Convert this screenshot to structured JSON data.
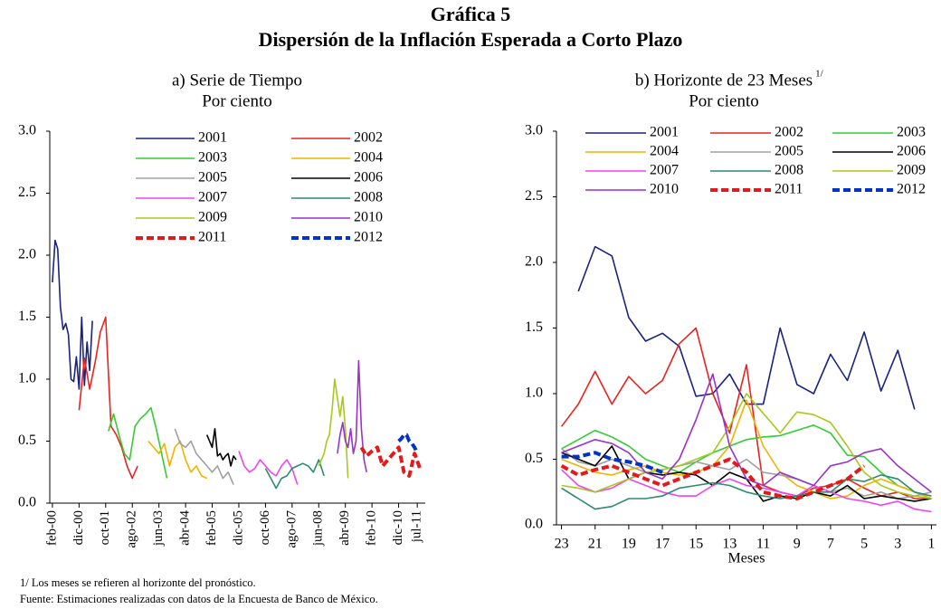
{
  "title": "Gráfica 5",
  "subtitle": "Dispersión de la Inflación Esperada a Corto Plazo",
  "footnotes": [
    "1/ Los meses se refieren al horizonte del pronóstico.",
    "Fuente: Estimaciones realizadas con datos de la Encuesta de Banco de México."
  ],
  "chart_data": [
    {
      "type": "line",
      "title": "a) Serie de Tiempo",
      "subtitle": "Por ciento",
      "xlim": [
        -1,
        140
      ],
      "xticks": [
        {
          "value": 0,
          "label": "feb-00"
        },
        {
          "value": 10,
          "label": "dic-00"
        },
        {
          "value": 20,
          "label": "oct-01"
        },
        {
          "value": 30,
          "label": "ago-02"
        },
        {
          "value": 40,
          "label": "jun-03"
        },
        {
          "value": 50,
          "label": "abr-04"
        },
        {
          "value": 60,
          "label": "feb-05"
        },
        {
          "value": 70,
          "label": "dic-05"
        },
        {
          "value": 80,
          "label": "oct-06"
        },
        {
          "value": 90,
          "label": "ago-07"
        },
        {
          "value": 100,
          "label": "jun-08"
        },
        {
          "value": 110,
          "label": "abr-09"
        },
        {
          "value": 120,
          "label": "feb-10"
        },
        {
          "value": 130,
          "label": "dic-10"
        },
        {
          "value": 137,
          "label": "jul-11"
        }
      ],
      "ylim": [
        0,
        3
      ],
      "yticks": [
        {
          "value": 0,
          "label": "0.0"
        },
        0.5,
        {
          "value": 1,
          "label": "1.0"
        },
        1.5,
        {
          "value": 2,
          "label": "2.0"
        },
        2.5,
        {
          "value": 3,
          "label": "3.0"
        }
      ],
      "series": [
        {
          "name": "2001",
          "color": "#1a237e",
          "x": [
            0,
            1,
            2,
            3,
            4,
            5,
            6,
            7,
            8,
            9,
            10,
            11,
            12,
            13,
            14,
            15
          ],
          "values": [
            1.78,
            2.12,
            2.05,
            1.58,
            1.4,
            1.45,
            1.36,
            1.0,
            0.98,
            1.18,
            0.92,
            1.5,
            0.95,
            1.3,
            1.07,
            1.47
          ]
        },
        {
          "name": "2002",
          "color": "#e8231e",
          "x": [
            10,
            12,
            14,
            16,
            18,
            20,
            22,
            24,
            26,
            28,
            30,
            32
          ],
          "values": [
            0.75,
            1.17,
            0.92,
            1.13,
            1.38,
            1.5,
            0.62,
            0.55,
            0.45,
            0.3,
            0.2,
            0.3
          ]
        },
        {
          "name": "2003",
          "color": "#33cc33",
          "x": [
            21,
            23,
            25,
            27,
            29,
            31,
            33,
            35,
            37,
            39,
            41,
            43
          ],
          "values": [
            0.58,
            0.72,
            0.55,
            0.4,
            0.35,
            0.62,
            0.68,
            0.72,
            0.77,
            0.6,
            0.4,
            0.2
          ]
        },
        {
          "name": "2004",
          "color": "#f0b400",
          "x": [
            36,
            38,
            40,
            42,
            44,
            46,
            48,
            50,
            52,
            54,
            56,
            58
          ],
          "values": [
            0.5,
            0.45,
            0.4,
            0.48,
            0.3,
            0.45,
            0.5,
            0.35,
            0.25,
            0.3,
            0.22,
            0.2
          ]
        },
        {
          "name": "2005",
          "color": "#a0a0a0",
          "x": [
            46,
            48,
            50,
            52,
            54,
            56,
            58,
            60,
            62,
            64,
            66,
            68
          ],
          "values": [
            0.6,
            0.48,
            0.45,
            0.5,
            0.4,
            0.35,
            0.3,
            0.25,
            0.3,
            0.2,
            0.25,
            0.15
          ]
        },
        {
          "name": "2006",
          "color": "#000000",
          "x": [
            58,
            59,
            60,
            61,
            62,
            63,
            64,
            65,
            66,
            67,
            68,
            69
          ],
          "values": [
            0.55,
            0.5,
            0.45,
            0.6,
            0.38,
            0.4,
            0.35,
            0.38,
            0.4,
            0.3,
            0.38,
            0.35
          ]
        },
        {
          "name": "2007",
          "color": "#ee44ee",
          "x": [
            70,
            72,
            74,
            76,
            78,
            80,
            82,
            84,
            86,
            88,
            90,
            92
          ],
          "values": [
            0.42,
            0.3,
            0.25,
            0.28,
            0.35,
            0.3,
            0.25,
            0.22,
            0.3,
            0.35,
            0.28,
            0.15
          ]
        },
        {
          "name": "2008",
          "color": "#2e8b6e",
          "x": [
            80,
            82,
            84,
            86,
            88,
            90,
            92,
            94,
            96,
            98,
            100,
            102
          ],
          "values": [
            0.28,
            0.2,
            0.12,
            0.2,
            0.22,
            0.28,
            0.3,
            0.32,
            0.3,
            0.25,
            0.35,
            0.22
          ]
        },
        {
          "name": "2009",
          "color": "#a8c820",
          "x": [
            100,
            101,
            102,
            103,
            104,
            105,
            106,
            107,
            108,
            109,
            110,
            111
          ],
          "values": [
            0.3,
            0.35,
            0.4,
            0.5,
            0.55,
            0.75,
            1.0,
            0.85,
            0.7,
            0.86,
            0.6,
            0.2
          ]
        },
        {
          "name": "2010",
          "color": "#9932cc",
          "x": [
            107,
            108,
            109,
            110,
            111,
            112,
            113,
            114,
            115,
            116,
            117,
            118
          ],
          "values": [
            0.4,
            0.55,
            0.65,
            0.5,
            0.45,
            0.6,
            0.4,
            0.5,
            1.15,
            0.6,
            0.35,
            0.25
          ]
        },
        {
          "name": "2011",
          "color": "#e31a1c",
          "dashed": true,
          "x": [
            116,
            118,
            120,
            122,
            124,
            126,
            128,
            130,
            132,
            134,
            136,
            138
          ],
          "values": [
            0.45,
            0.38,
            0.42,
            0.45,
            0.3,
            0.35,
            0.4,
            0.45,
            0.25,
            0.22,
            0.4,
            0.28
          ]
        },
        {
          "name": "2012",
          "color": "#0033cc",
          "dashed": true,
          "x": [
            130,
            131,
            132,
            133,
            134,
            135,
            136,
            137
          ],
          "values": [
            0.5,
            0.52,
            0.55,
            0.55,
            0.5,
            0.48,
            0.45,
            0.4
          ]
        }
      ]
    },
    {
      "type": "line",
      "title": "b) Horizonte de 23 Meses",
      "title_note": "1/",
      "subtitle": "Por ciento",
      "xlabel": "Meses",
      "x": [
        23,
        22,
        21,
        20,
        19,
        18,
        17,
        16,
        15,
        14,
        13,
        12,
        11,
        10,
        9,
        8,
        7,
        6,
        5,
        4,
        3,
        2,
        1
      ],
      "xlim": [
        23.3,
        0.7
      ],
      "xticks": [
        23,
        21,
        19,
        17,
        15,
        13,
        11,
        9,
        7,
        5,
        3,
        1
      ],
      "ylim": [
        0,
        3
      ],
      "yticks": [
        {
          "value": 0,
          "label": "0.0"
        },
        0.5,
        {
          "value": 1,
          "label": "1.0"
        },
        1.5,
        {
          "value": 2,
          "label": "2.0"
        },
        2.5,
        {
          "value": 3,
          "label": "3.0"
        }
      ],
      "series": [
        {
          "name": "2001",
          "color": "#1a237e",
          "values": [
            null,
            1.78,
            2.12,
            2.05,
            1.58,
            1.4,
            1.46,
            1.36,
            0.98,
            1.0,
            1.15,
            0.92,
            0.92,
            1.5,
            1.07,
            1.0,
            1.3,
            1.1,
            1.47,
            1.02,
            1.33,
            0.88,
            null
          ]
        },
        {
          "name": "2002",
          "color": "#e8231e",
          "values": [
            0.75,
            0.92,
            1.17,
            0.92,
            1.13,
            1.0,
            1.1,
            1.38,
            1.5,
            1.0,
            0.7,
            1.22,
            0.3,
            0.25,
            0.22,
            0.28,
            0.3,
            0.35,
            0.28,
            0.22,
            0.25,
            0.2,
            0.2
          ]
        },
        {
          "name": "2003",
          "color": "#33cc33",
          "values": [
            0.58,
            0.65,
            0.72,
            0.67,
            0.6,
            0.5,
            0.45,
            0.4,
            0.48,
            0.55,
            0.6,
            0.65,
            0.67,
            0.68,
            0.72,
            0.76,
            0.7,
            0.53,
            0.52,
            0.4,
            0.3,
            0.25,
            0.2
          ]
        },
        {
          "name": "2004",
          "color": "#f0b400",
          "values": [
            0.5,
            0.45,
            0.4,
            0.38,
            0.42,
            0.45,
            0.4,
            0.38,
            0.4,
            0.45,
            0.6,
            0.95,
            0.6,
            0.4,
            0.3,
            0.25,
            0.2,
            0.22,
            0.3,
            0.35,
            0.3,
            0.25,
            0.2
          ]
        },
        {
          "name": "2005",
          "color": "#a0a0a0",
          "values": [
            0.58,
            0.48,
            0.45,
            0.5,
            0.45,
            0.4,
            0.42,
            0.45,
            0.48,
            0.45,
            0.42,
            0.5,
            0.4,
            0.38,
            0.35,
            0.3,
            0.25,
            0.28,
            0.22,
            0.25,
            0.2,
            0.22,
            0.25
          ]
        },
        {
          "name": "2006",
          "color": "#000000",
          "values": [
            0.55,
            0.5,
            0.45,
            0.6,
            0.35,
            0.4,
            0.38,
            0.4,
            0.38,
            0.3,
            0.4,
            0.35,
            0.18,
            0.22,
            0.2,
            0.25,
            0.22,
            0.3,
            0.2,
            0.22,
            0.2,
            0.18,
            0.2
          ]
        },
        {
          "name": "2007",
          "color": "#ee44ee",
          "values": [
            0.42,
            0.3,
            0.25,
            0.28,
            0.35,
            0.3,
            0.25,
            0.22,
            0.22,
            0.3,
            0.35,
            0.3,
            0.28,
            0.25,
            0.22,
            0.3,
            0.25,
            0.2,
            0.18,
            0.15,
            0.18,
            0.12,
            0.1
          ]
        },
        {
          "name": "2008",
          "color": "#2e8b6e",
          "values": [
            0.28,
            0.2,
            0.12,
            0.14,
            0.2,
            0.2,
            0.22,
            0.28,
            0.3,
            0.32,
            0.3,
            0.25,
            0.22,
            0.2,
            0.22,
            0.25,
            0.25,
            0.35,
            0.33,
            0.38,
            0.35,
            0.25,
            0.22
          ]
        },
        {
          "name": "2009",
          "color": "#a8c820",
          "values": [
            0.3,
            0.28,
            0.25,
            0.3,
            0.35,
            0.4,
            0.42,
            0.45,
            0.5,
            0.55,
            0.75,
            1.0,
            0.85,
            0.7,
            0.86,
            0.84,
            0.78,
            0.6,
            0.4,
            0.3,
            0.25,
            0.22,
            0.2
          ]
        },
        {
          "name": "2010",
          "color": "#9932cc",
          "values": [
            0.55,
            0.6,
            0.65,
            0.62,
            0.55,
            0.4,
            0.35,
            0.5,
            0.8,
            1.15,
            0.6,
            0.35,
            0.3,
            0.4,
            0.35,
            0.3,
            0.45,
            0.48,
            0.55,
            0.58,
            0.45,
            0.35,
            0.25
          ]
        },
        {
          "name": "2011",
          "color": "#e31a1c",
          "dashed": true,
          "values": [
            0.45,
            0.38,
            0.42,
            0.45,
            0.4,
            0.35,
            0.3,
            0.35,
            0.4,
            0.45,
            0.5,
            0.4,
            0.25,
            0.22,
            0.2,
            0.25,
            0.3,
            0.35,
            0.45,
            null,
            null,
            null,
            null
          ]
        },
        {
          "name": "2012",
          "color": "#0033cc",
          "dashed": true,
          "values": [
            0.52,
            0.52,
            0.55,
            0.5,
            0.48,
            0.45,
            0.4,
            null,
            null,
            null,
            null,
            null,
            null,
            null,
            null,
            null,
            null,
            null,
            null,
            null,
            null,
            null,
            null
          ]
        }
      ]
    }
  ]
}
